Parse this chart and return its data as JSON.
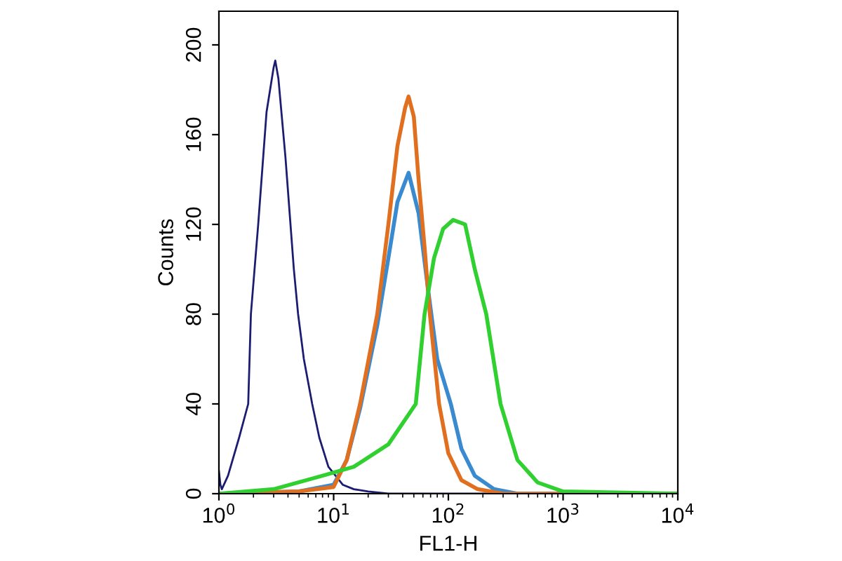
{
  "chart_data": {
    "type": "line",
    "xlabel": "FL1-H",
    "ylabel": "Counts",
    "log": "x",
    "xlim": [
      1,
      10000
    ],
    "ylim": [
      0,
      215
    ],
    "xticks": [
      {
        "value": 1,
        "label": "10$^{0}$"
      },
      {
        "value": 10,
        "label": "10$^{1}$"
      },
      {
        "value": 100,
        "label": "10$^{2}$"
      },
      {
        "value": 1000,
        "label": "10$^{3}$"
      },
      {
        "value": 10000,
        "label": "10$^{4}$"
      }
    ],
    "yticks": [
      0,
      40,
      80,
      120,
      160,
      200
    ],
    "grid": false,
    "legend": false,
    "marker": "none",
    "line_style": "solid",
    "series": [
      {
        "color": "#1c1c70",
        "x": [
          1,
          1.03,
          1.06,
          1.2,
          1.5,
          1.8,
          1.9,
          2.2,
          2.6,
          3.0,
          3.1,
          3.3,
          3.8,
          4.5,
          4.9,
          5.5,
          6.5,
          7.5,
          9,
          12,
          15,
          20,
          30,
          60,
          200,
          1000,
          10000
        ],
        "values": [
          10,
          4,
          2,
          8,
          25,
          40,
          80,
          120,
          170,
          190,
          193,
          185,
          150,
          100,
          80,
          60,
          40,
          25,
          12,
          4,
          2,
          1,
          0,
          0,
          0,
          0,
          0
        ]
      },
      {
        "color": "#3a8ad0",
        "x": [
          1,
          5,
          10,
          13,
          17,
          24,
          30,
          36,
          45,
          55,
          65,
          80,
          105,
          130,
          170,
          250,
          400,
          10000
        ],
        "values": [
          0,
          1,
          4,
          15,
          38,
          75,
          105,
          130,
          143,
          125,
          95,
          60,
          40,
          20,
          8,
          2,
          0,
          0
        ]
      },
      {
        "color": "#e07020",
        "x": [
          1,
          5,
          10,
          13,
          17,
          24,
          30,
          36,
          42,
          45,
          50,
          55,
          62,
          69,
          83,
          100,
          130,
          180,
          300,
          10000
        ],
        "values": [
          0,
          1,
          3,
          15,
          40,
          80,
          120,
          155,
          172,
          177,
          168,
          140,
          110,
          80,
          40,
          18,
          6,
          2,
          0,
          0
        ]
      },
      {
        "color": "#30d030",
        "x": [
          1,
          3,
          8,
          15,
          30,
          52,
          62,
          75,
          90,
          110,
          140,
          170,
          214,
          285,
          400,
          600,
          1000,
          10000
        ],
        "values": [
          0,
          2,
          8,
          12,
          22,
          40,
          80,
          105,
          118,
          122,
          120,
          100,
          80,
          40,
          15,
          5,
          1,
          0
        ]
      }
    ]
  }
}
